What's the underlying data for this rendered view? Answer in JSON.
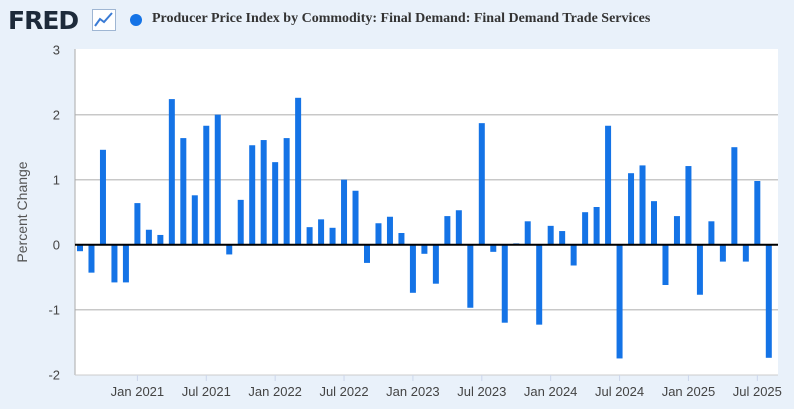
{
  "header": {
    "logo": "FRED",
    "title": "Producer Price Index by Commodity: Final Demand: Final Demand Trade Services"
  },
  "chart_data": {
    "type": "bar",
    "title": "Producer Price Index by Commodity: Final Demand: Final Demand Trade Services",
    "ylabel": "Percent Change",
    "xlabel": "",
    "series_name": "Producer Price Index by Commodity: Final Demand: Final Demand Trade Services",
    "color": "#1473e6",
    "ylim": [
      -2,
      3
    ],
    "yticks": [
      "3",
      "2",
      "1",
      "0",
      "-1",
      "-2"
    ],
    "ytick_values": [
      3,
      2,
      1,
      0,
      -1,
      -2
    ],
    "xticks": [
      "Jan 2021",
      "Jul 2021",
      "Jan 2022",
      "Jul 2022",
      "Jan 2023",
      "Jul 2023",
      "Jan 2024",
      "Jul 2024",
      "Jan 2025",
      "Jul 2025"
    ],
    "xtick_index": [
      5,
      11,
      17,
      23,
      29,
      35,
      41,
      47,
      53,
      59
    ],
    "grid": true,
    "legend": "top",
    "categories": [
      "2020-08",
      "2020-09",
      "2020-10",
      "2020-11",
      "2020-12",
      "2021-01",
      "2021-02",
      "2021-03",
      "2021-04",
      "2021-05",
      "2021-06",
      "2021-07",
      "2021-08",
      "2021-09",
      "2021-10",
      "2021-11",
      "2021-12",
      "2022-01",
      "2022-02",
      "2022-03",
      "2022-04",
      "2022-05",
      "2022-06",
      "2022-07",
      "2022-08",
      "2022-09",
      "2022-10",
      "2022-11",
      "2022-12",
      "2023-01",
      "2023-02",
      "2023-03",
      "2023-04",
      "2023-05",
      "2023-06",
      "2023-07",
      "2023-08",
      "2023-09",
      "2023-10",
      "2023-11",
      "2023-12",
      "2024-01",
      "2024-02",
      "2024-03",
      "2024-04",
      "2024-05",
      "2024-06",
      "2024-07",
      "2024-08",
      "2024-09",
      "2024-10",
      "2024-11",
      "2024-12",
      "2025-01",
      "2025-02",
      "2025-03",
      "2025-04",
      "2025-05",
      "2025-06",
      "2025-07",
      "2025-08"
    ],
    "values": [
      -0.1,
      -0.43,
      1.46,
      -0.58,
      -0.58,
      0.64,
      0.23,
      0.15,
      2.24,
      1.64,
      0.76,
      1.83,
      2.0,
      -0.15,
      0.69,
      1.53,
      1.61,
      1.27,
      1.64,
      2.26,
      0.27,
      0.39,
      0.26,
      1.0,
      0.83,
      -0.28,
      0.33,
      0.43,
      0.18,
      -0.74,
      -0.14,
      -0.6,
      0.44,
      0.53,
      -0.97,
      1.87,
      -0.11,
      -1.2,
      0.02,
      0.36,
      -1.23,
      0.29,
      0.21,
      -0.32,
      0.5,
      0.58,
      1.83,
      -1.75,
      1.1,
      1.22,
      0.67,
      -0.62,
      0.44,
      1.21,
      -0.77,
      0.36,
      -0.26,
      1.5,
      -0.26,
      0.98,
      -1.74
    ]
  }
}
